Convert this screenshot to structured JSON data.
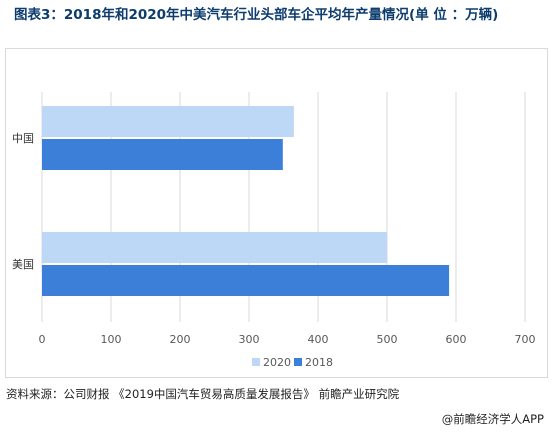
{
  "title": "图表3：2018年和2020年中美汽车行业头部车企平均年产量情况(单 位 ：万辆)",
  "source": "资料来源：公司财报 《2019中国汽车贸易高质量发展报告》 前瞻产业研究院",
  "credit": "@前瞻经济学人APP",
  "colors": {
    "series_2020": "#bdd7f6",
    "series_2018": "#3c7fd9",
    "title": "#0d3c6e",
    "grid": "#d9d9d9",
    "axis_text": "#595959"
  },
  "chart_data": {
    "type": "bar",
    "orientation": "horizontal",
    "categories": [
      "中国",
      "美国"
    ],
    "series": [
      {
        "name": "2020",
        "values": [
          365,
          500
        ]
      },
      {
        "name": "2018",
        "values": [
          349,
          590
        ]
      }
    ],
    "xlim": [
      0,
      700
    ],
    "xticks": [
      0,
      100,
      200,
      300,
      400,
      500,
      600,
      700
    ],
    "grid": true,
    "legend": "bottom"
  }
}
